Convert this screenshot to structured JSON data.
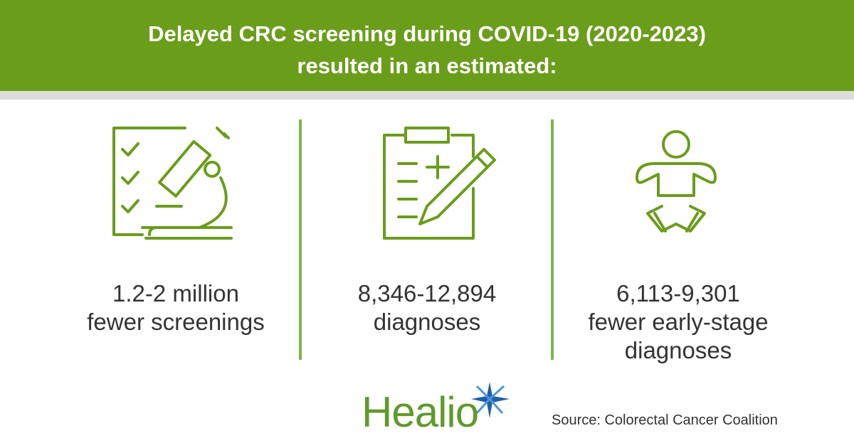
{
  "header": {
    "title_lines": [
      "Delayed CRC screening during COVID-19 (2020-2023)",
      "resulted in an estimated:"
    ]
  },
  "stats": [
    {
      "lines": [
        "1.2-2 million",
        "fewer screenings"
      ]
    },
    {
      "lines": [
        "8,346-12,894",
        "diagnoses"
      ]
    },
    {
      "lines": [
        "6,113-9,301",
        "fewer early-stage",
        "diagnoses"
      ]
    }
  ],
  "logo": "Healio",
  "source": "Source: Colorectal Cancer Coalition"
}
